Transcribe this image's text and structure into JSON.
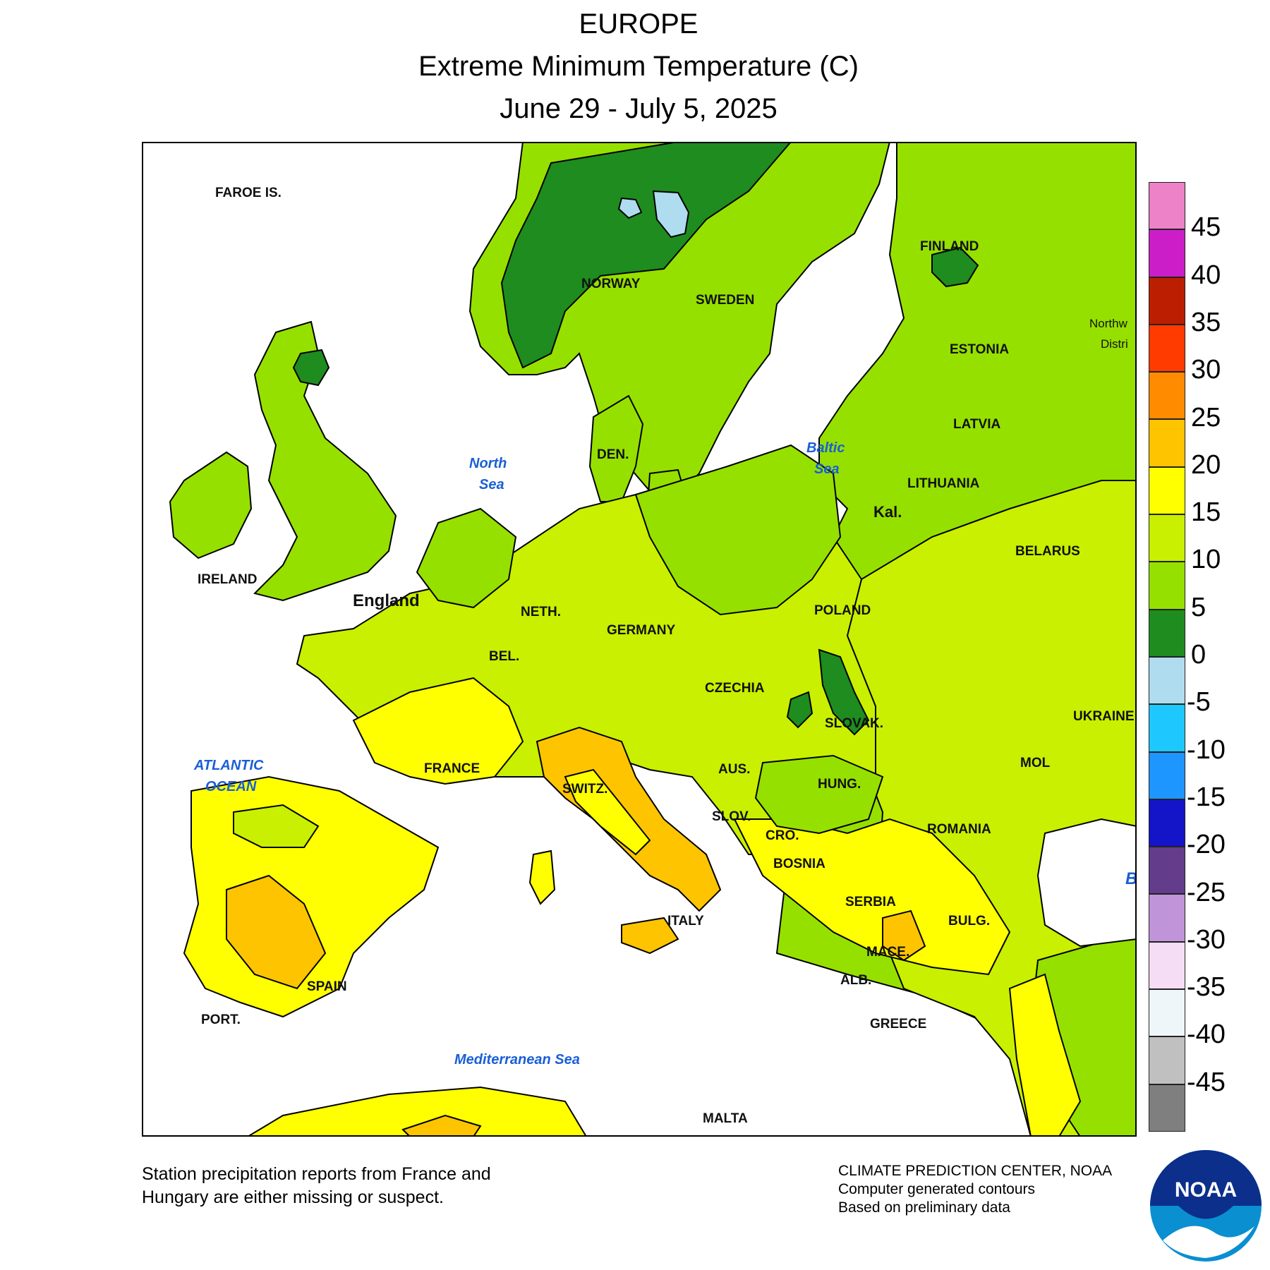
{
  "title": {
    "line1": "EUROPE",
    "line2": "Extreme Minimum Temperature (C)",
    "line3": "June 29 - July 5, 2025"
  },
  "legend": {
    "colors": [
      "#ee82c8",
      "#cc1ec8",
      "#bb1e00",
      "#ff3b00",
      "#ff8c00",
      "#ffc400",
      "#ffff00",
      "#c8f000",
      "#96e000",
      "#1e8c1e",
      "#b0dcf0",
      "#1ec8ff",
      "#1e96ff",
      "#1414c8",
      "#643c8c",
      "#c094d8",
      "#f5ddf5",
      "#eef6fa",
      "#c0c0c0",
      "#7f7f7f"
    ],
    "labels": [
      "45",
      "40",
      "35",
      "30",
      "25",
      "20",
      "15",
      "10",
      "5",
      "0",
      "-5",
      "-10",
      "-15",
      "-20",
      "-25",
      "-30",
      "-35",
      "-40",
      "-45"
    ]
  },
  "map": {
    "countries": [
      "FAROE IS.",
      "NORWAY",
      "SWEDEN",
      "FINLAND",
      "ESTONIA",
      "LATVIA",
      "LITHUANIA",
      "Kal.",
      "BELARUS",
      "UKRAINE",
      "MOL",
      "ROMANIA",
      "BULG.",
      "SERBIA",
      "BOSNIA",
      "CRO.",
      "SLOV.",
      "HUNG.",
      "SLOVAK.",
      "POLAND",
      "CZECHIA",
      "AUS.",
      "SWITZ.",
      "GERMANY",
      "DEN.",
      "NETH.",
      "BEL.",
      "FRANCE",
      "SPAIN",
      "PORT.",
      "ITALY",
      "MALTA",
      "ALB.",
      "MACE.",
      "GREECE",
      "IRELAND",
      "England",
      "Northw",
      "Distri"
    ],
    "water": [
      "North",
      "Sea",
      "Baltic",
      "Sea",
      "ATLANTIC",
      "OCEAN",
      "Mediterranean Sea",
      "B"
    ]
  },
  "notes": {
    "left_line1": "Station precipitation reports from France and",
    "left_line2": "Hungary are either missing or suspect.",
    "credit1": "CLIMATE PREDICTION CENTER, NOAA",
    "credit2": "Computer generated contours",
    "credit3": "Based on preliminary data",
    "logo": "NOAA"
  }
}
